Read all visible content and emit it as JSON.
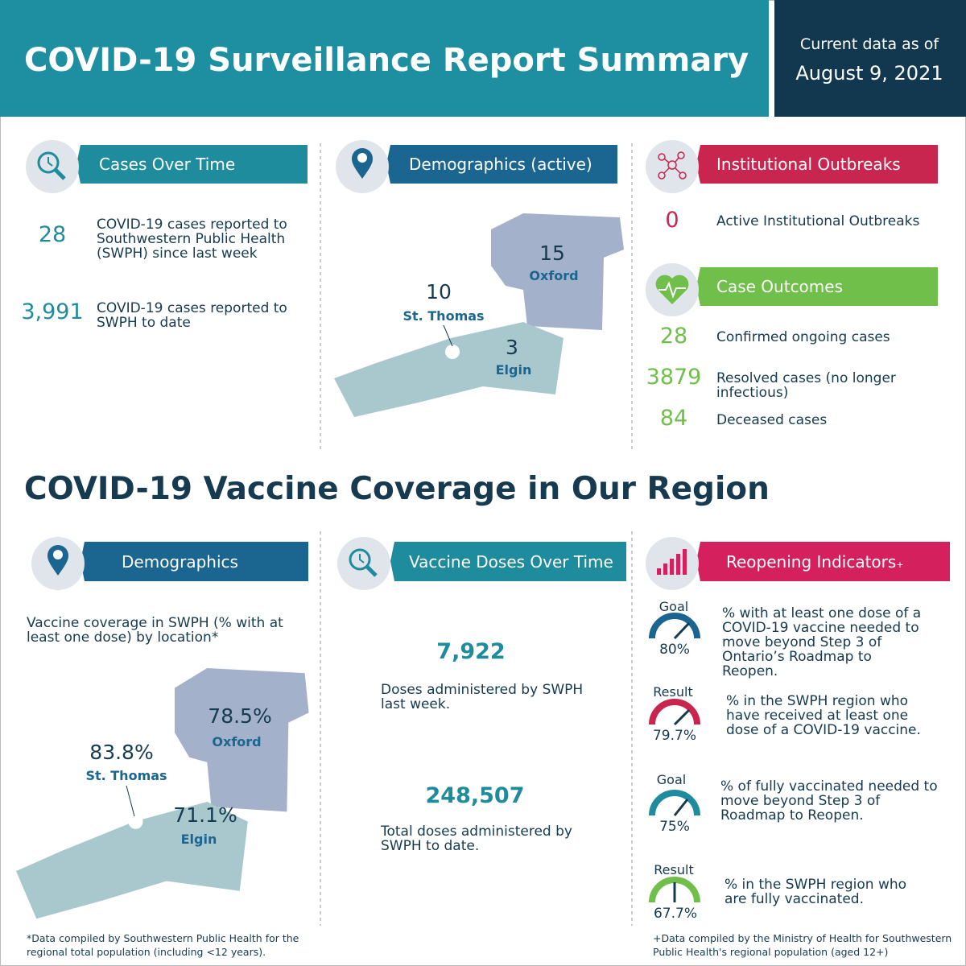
{
  "header": {
    "title": "COVID-19 Surveillance Report Summary",
    "date_label": "Current data as of",
    "date": "August 9, 2021"
  },
  "cases_over_time": {
    "title": "Cases Over Time",
    "items": [
      {
        "value": "28",
        "text": "COVID-19 cases reported to Southwestern Public Health (SWPH) since last week"
      },
      {
        "value": "3,991",
        "text": "COVID-19 cases reported to SWPH to date"
      }
    ]
  },
  "demographics_active": {
    "title": "Demographics (active)",
    "regions": [
      {
        "value": "15",
        "name": "Oxford"
      },
      {
        "value": "10",
        "name": "St. Thomas"
      },
      {
        "value": "3",
        "name": "Elgin"
      }
    ]
  },
  "institutional_outbreaks": {
    "title": "Institutional Outbreaks",
    "value": "0",
    "text": "Active Institutional Outbreaks"
  },
  "case_outcomes": {
    "title": "Case Outcomes",
    "items": [
      {
        "value": "28",
        "text": "Confirmed ongoing cases"
      },
      {
        "value": "3879",
        "text": "Resolved cases (no longer infectious)"
      },
      {
        "value": "84",
        "text": "Deceased cases"
      }
    ]
  },
  "vaccine_section": {
    "title": "COVID-19 Vaccine Coverage in Our Region"
  },
  "vaccine_demographics": {
    "title": "Demographics",
    "description": "Vaccine coverage in SWPH  (% with at least one dose) by location*",
    "regions": [
      {
        "value": "78.5%",
        "name": "Oxford"
      },
      {
        "value": "83.8%",
        "name": "St. Thomas"
      },
      {
        "value": "71.1%",
        "name": "Elgin"
      }
    ],
    "footnote": "*Data compiled by Southwestern Public Health for the regional total population (including <12 years)."
  },
  "vaccine_doses": {
    "title": "Vaccine Doses Over Time",
    "items": [
      {
        "value": "7,922",
        "text": "Doses administered by SWPH last week."
      },
      {
        "value": "248,507",
        "text": "Total doses administered by SWPH to date."
      }
    ]
  },
  "reopening": {
    "title": "Reopening Indicators",
    "title_suffix": "+",
    "indicators": [
      {
        "kind": "Goal",
        "value": "80%",
        "text": "% with at least one dose of a COVID-19 vaccine needed to move beyond Step 3 of Ontario’s Roadmap to Reopen."
      },
      {
        "kind": "Result",
        "value": "79.7%",
        "text": "% in the SWPH region who have received at least one dose of a COVID-19 vaccine."
      },
      {
        "kind": "Goal",
        "value": "75%",
        "text": "% of fully vaccinated needed to move beyond Step 3 of Roadmap to Reopen."
      },
      {
        "kind": "Result",
        "value": "67.7%",
        "text": "%  in the SWPH region who are fully vaccinated."
      }
    ],
    "footnote": "+Data compiled by the Ministry of Health for Southwestern Public Health's regional population (aged 12+)"
  }
}
